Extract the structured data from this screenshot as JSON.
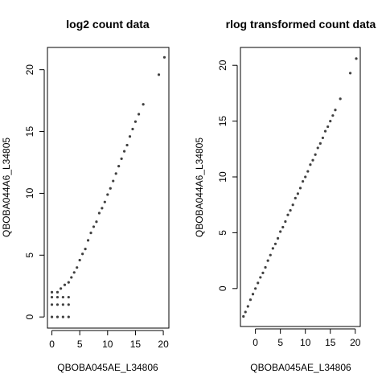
{
  "chart_data": [
    {
      "type": "scatter",
      "title": "log2 count data",
      "xlabel": "QBOBA045AE_L34806",
      "ylabel": "QBOBA044A6_L34805",
      "xlim": [
        -0.8,
        21
      ],
      "ylim": [
        -0.9,
        21.8
      ],
      "xticks": [
        0,
        5,
        10,
        15,
        20
      ],
      "yticks": [
        0,
        5,
        10,
        15,
        20
      ],
      "grid": false,
      "legend": "none",
      "point_color": "#000000",
      "series": [
        {
          "points": [
            [
              0.0,
              0.0
            ],
            [
              1.0,
              0.0
            ],
            [
              2.0,
              0.0
            ],
            [
              3.0,
              0.0
            ],
            [
              0.0,
              1.0
            ],
            [
              1.0,
              1.0
            ],
            [
              2.0,
              1.0
            ],
            [
              3.0,
              1.0
            ],
            [
              0.0,
              1.6
            ],
            [
              1.0,
              1.6
            ],
            [
              2.0,
              1.6
            ],
            [
              3.0,
              1.6
            ],
            [
              0.0,
              2.0
            ],
            [
              1.0,
              2.0
            ],
            [
              1.6,
              2.3
            ],
            [
              2.3,
              2.6
            ],
            [
              3.0,
              2.8
            ],
            [
              3.5,
              3.2
            ],
            [
              4.0,
              3.6
            ],
            [
              4.5,
              4.0
            ],
            [
              5.0,
              4.6
            ],
            [
              5.5,
              5.1
            ],
            [
              6.0,
              5.5
            ],
            [
              6.5,
              6.2
            ],
            [
              7.0,
              6.8
            ],
            [
              7.5,
              7.3
            ],
            [
              8.0,
              7.7
            ],
            [
              8.5,
              8.4
            ],
            [
              9.0,
              8.8
            ],
            [
              9.5,
              9.3
            ],
            [
              10.0,
              9.9
            ],
            [
              10.5,
              10.4
            ],
            [
              11.0,
              11.0
            ],
            [
              11.5,
              11.6
            ],
            [
              12.0,
              12.2
            ],
            [
              12.5,
              12.8
            ],
            [
              13.0,
              13.4
            ],
            [
              13.5,
              13.9
            ],
            [
              14.0,
              14.6
            ],
            [
              14.5,
              15.2
            ],
            [
              15.0,
              15.8
            ],
            [
              15.6,
              16.4
            ],
            [
              16.4,
              17.2
            ],
            [
              19.2,
              19.6
            ],
            [
              20.2,
              21.0
            ]
          ]
        }
      ]
    },
    {
      "type": "scatter",
      "title": "rlog transformed count data",
      "xlabel": "QBOBA045AE_L34806",
      "ylabel": "QBOBA044A6_L34805",
      "xlim": [
        -3.0,
        21.0
      ],
      "ylim": [
        -3.4,
        21.6
      ],
      "xticks": [
        0,
        5,
        10,
        15,
        20
      ],
      "yticks": [
        0,
        5,
        10,
        15,
        20
      ],
      "grid": false,
      "legend": "none",
      "point_color": "#000000",
      "series": [
        {
          "points": [
            [
              -2.4,
              -2.5
            ],
            [
              -2.0,
              -2.1
            ],
            [
              -1.5,
              -1.6
            ],
            [
              -1.0,
              -1.0
            ],
            [
              -0.5,
              -0.5
            ],
            [
              0.0,
              0.0
            ],
            [
              0.5,
              0.5
            ],
            [
              1.0,
              1.0
            ],
            [
              1.5,
              1.4
            ],
            [
              2.0,
              1.9
            ],
            [
              2.5,
              2.5
            ],
            [
              3.0,
              3.0
            ],
            [
              3.5,
              3.6
            ],
            [
              4.0,
              4.0
            ],
            [
              4.5,
              4.5
            ],
            [
              5.0,
              5.1
            ],
            [
              5.5,
              5.5
            ],
            [
              6.0,
              6.0
            ],
            [
              6.5,
              6.6
            ],
            [
              7.0,
              7.0
            ],
            [
              7.5,
              7.5
            ],
            [
              8.0,
              8.1
            ],
            [
              8.5,
              8.5
            ],
            [
              9.0,
              9.0
            ],
            [
              9.5,
              9.6
            ],
            [
              10.0,
              10.0
            ],
            [
              10.5,
              10.5
            ],
            [
              11.0,
              11.1
            ],
            [
              11.5,
              11.5
            ],
            [
              12.0,
              12.0
            ],
            [
              12.5,
              12.6
            ],
            [
              13.0,
              13.0
            ],
            [
              13.5,
              13.5
            ],
            [
              14.0,
              14.1
            ],
            [
              14.5,
              14.5
            ],
            [
              15.0,
              15.0
            ],
            [
              15.5,
              15.5
            ],
            [
              16.0,
              16.0
            ],
            [
              17.0,
              17.0
            ],
            [
              19.0,
              19.3
            ],
            [
              20.2,
              20.6
            ]
          ]
        }
      ]
    }
  ]
}
